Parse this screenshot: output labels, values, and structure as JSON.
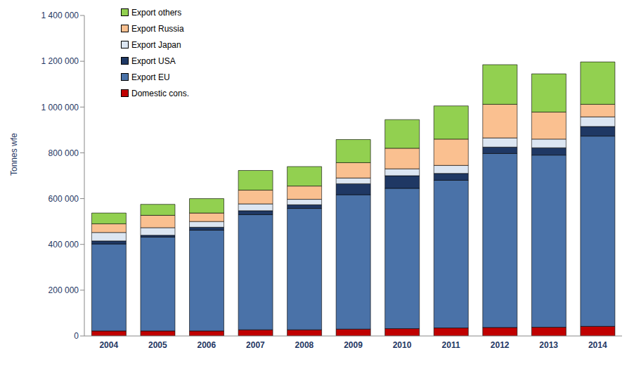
{
  "chart_data": {
    "type": "bar",
    "stacked": true,
    "grid": false,
    "legend": "top-left",
    "y_label": "Tonnes wfe",
    "categories": [
      "2004",
      "2005",
      "2006",
      "2007",
      "2008",
      "2009",
      "2010",
      "2011",
      "2012",
      "2013",
      "2014"
    ],
    "ylim": [
      0,
      1400000
    ],
    "yticks": [
      0,
      {
        "value": 200000,
        "label": "200 000"
      },
      {
        "value": 400000,
        "label": "400 000"
      },
      {
        "value": 600000,
        "label": "600 000"
      },
      {
        "value": 800000,
        "label": "800 000"
      },
      {
        "value": 1000000,
        "label": "1 000 000"
      },
      {
        "value": 1200000,
        "label": "1 200 000"
      },
      {
        "value": 1400000,
        "label": "1 400 000"
      }
    ],
    "series": [
      {
        "name": "Domestic cons.",
        "color": "#c00000",
        "values": [
          22000,
          22000,
          22000,
          27000,
          27000,
          30000,
          32000,
          35000,
          37000,
          38000,
          42000
        ]
      },
      {
        "name": "Export EU",
        "color": "#4a72a8",
        "values": [
          380000,
          410000,
          440000,
          503000,
          530000,
          587000,
          613000,
          645000,
          760000,
          752000,
          831000
        ]
      },
      {
        "name": "Export USA",
        "color": "#1f3864",
        "values": [
          13000,
          8000,
          13000,
          17000,
          16000,
          48000,
          55000,
          30000,
          28000,
          32000,
          42000
        ]
      },
      {
        "name": "Export Japan",
        "color": "#dce6f2",
        "values": [
          37000,
          33000,
          25000,
          30000,
          24000,
          25000,
          30000,
          35000,
          40000,
          38000,
          42000
        ]
      },
      {
        "name": "Export Russia",
        "color": "#fac090",
        "values": [
          38000,
          54000,
          37000,
          60000,
          58000,
          67000,
          90000,
          115000,
          147000,
          118000,
          55000
        ]
      },
      {
        "name": "Export others",
        "color": "#92d050",
        "values": [
          47000,
          48000,
          63000,
          86000,
          85000,
          101000,
          125000,
          145000,
          173000,
          167000,
          185000
        ]
      }
    ]
  }
}
